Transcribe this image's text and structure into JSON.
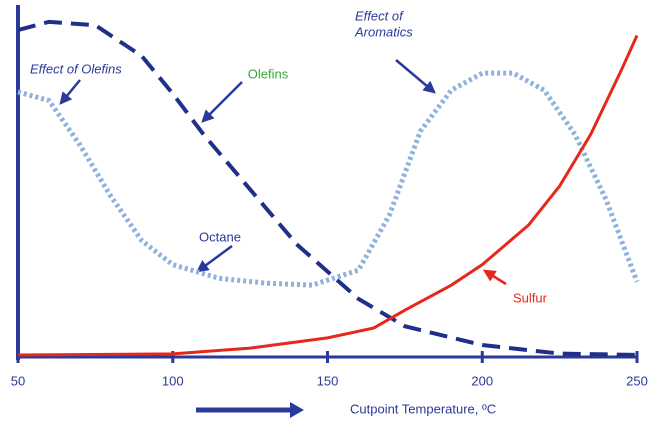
{
  "chart_data": {
    "type": "line",
    "x_label": "Cutpoint Temperature, ºC",
    "xlim": [
      50,
      250
    ],
    "xticks": [
      50,
      100,
      150,
      200,
      250
    ],
    "ylim": [
      0,
      100
    ],
    "annotations": [
      {
        "lines": [
          "Effect of Olefins"
        ]
      },
      {
        "lines": [
          "Effect of",
          "Aromatics"
        ]
      }
    ],
    "series": [
      {
        "name": "Olefins",
        "color": "#1f2f8a",
        "label_color": "#3aaa35",
        "style": "dashed",
        "x": [
          50,
          60,
          75,
          90,
          100,
          110,
          125,
          140,
          150,
          160,
          175,
          200,
          225,
          250
        ],
        "values": [
          95.6,
          98,
          97,
          88,
          77,
          65,
          49,
          33,
          25,
          17,
          9,
          3.5,
          1,
          0.6
        ]
      },
      {
        "name": "Octane",
        "color": "#8fb1dd",
        "label_color": "#2a3a9a",
        "style": "dotted",
        "x": [
          50,
          60,
          70,
          80,
          90,
          100,
          115,
          130,
          145,
          160,
          170,
          180,
          190,
          200,
          210,
          220,
          230,
          240,
          250
        ],
        "values": [
          77.5,
          75,
          62,
          47,
          34,
          27,
          23,
          21.6,
          21,
          25.4,
          41.5,
          66,
          78,
          83,
          83,
          78,
          65,
          46,
          22
        ]
      },
      {
        "name": "Sulfur",
        "color": "#e8271c",
        "label_color": "#e8271c",
        "style": "solid",
        "x": [
          50,
          100,
          125,
          150,
          165,
          175,
          190,
          200,
          215,
          225,
          235,
          245,
          250
        ],
        "values": [
          0.6,
          0.9,
          2.6,
          5.6,
          8.5,
          13.7,
          21,
          27,
          38.6,
          50,
          65,
          84,
          94
        ]
      }
    ]
  }
}
